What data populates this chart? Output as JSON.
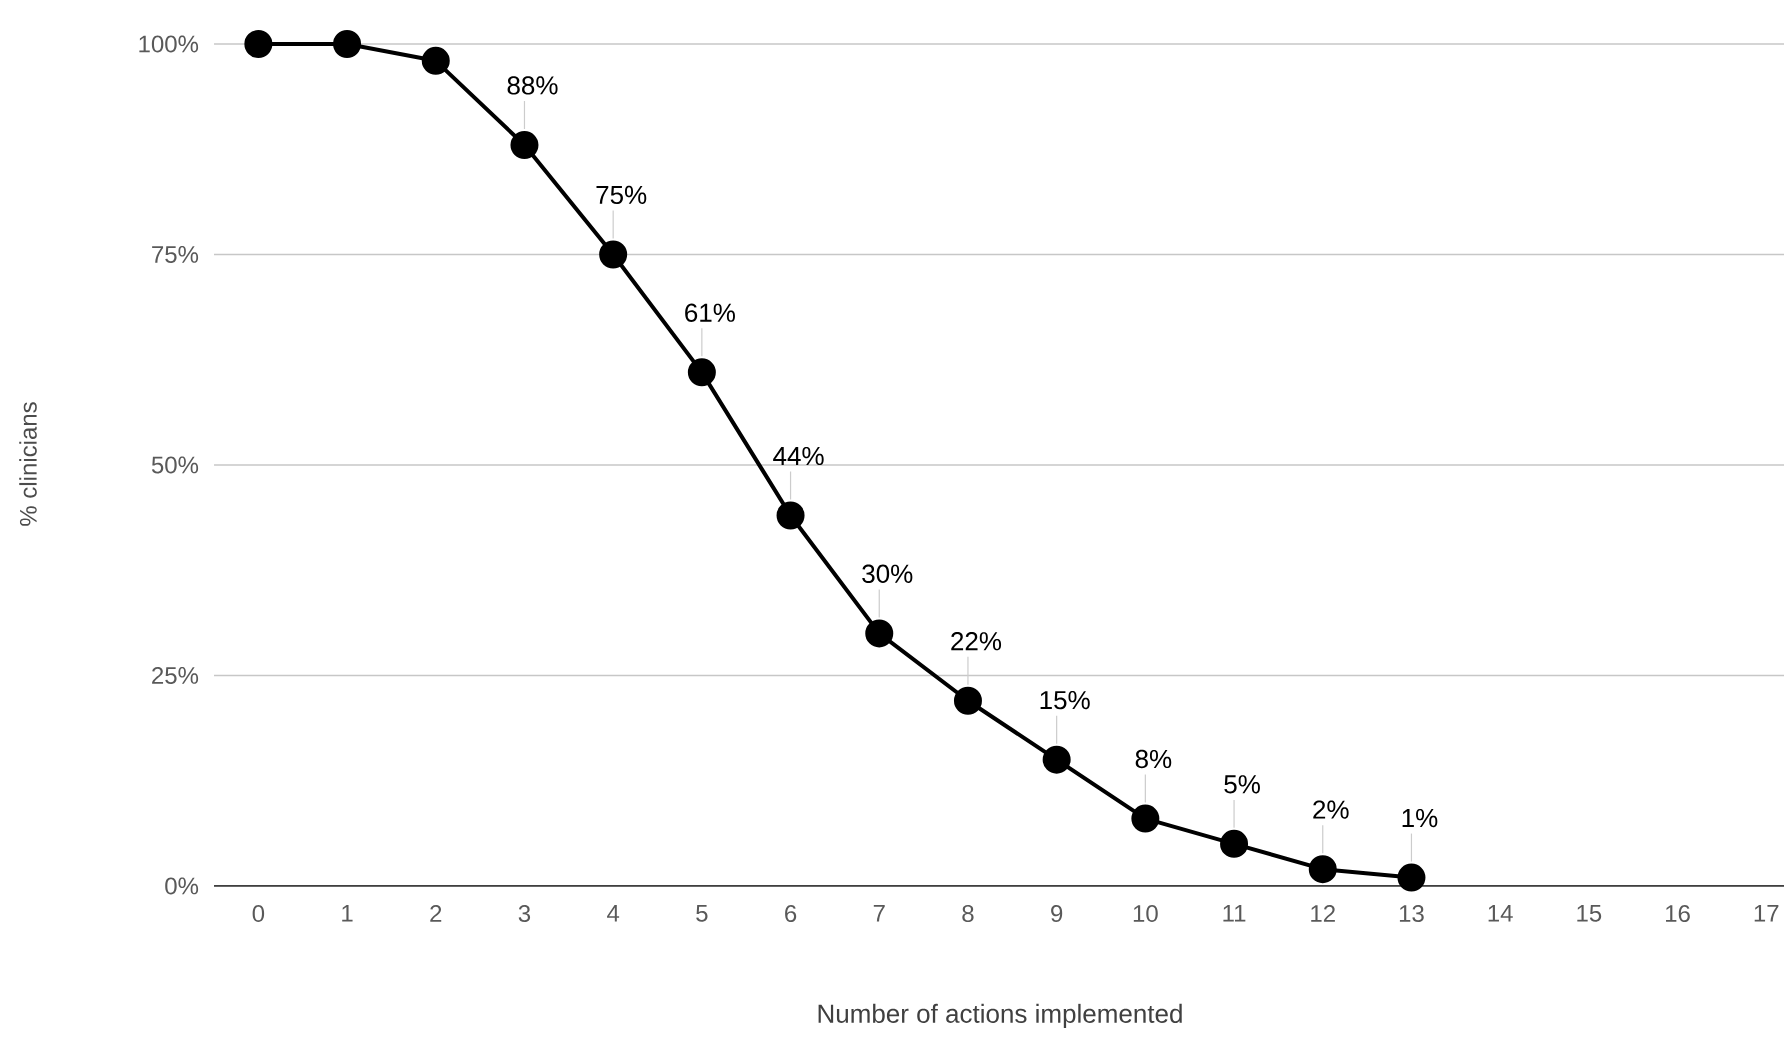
{
  "chart_data": {
    "type": "line",
    "xlabel": "Number of  actions implemented",
    "ylabel": "% clinicians",
    "categories": [
      "0",
      "1",
      "2",
      "3",
      "4",
      "5",
      "6",
      "7",
      "8",
      "9",
      "10",
      "11",
      "12",
      "13",
      "14",
      "15",
      "16",
      "17"
    ],
    "series": [
      {
        "color": "#000000",
        "values": [
          100,
          100,
          98,
          88,
          75,
          61,
          44,
          30,
          22,
          15,
          8,
          5,
          2,
          1,
          null,
          null,
          null,
          null
        ]
      }
    ],
    "value_labels": [
      null,
      null,
      null,
      "88%",
      "75%",
      "61%",
      "44%",
      "30%",
      "22%",
      "15%",
      "8%",
      "5%",
      "2%",
      "1%",
      null,
      null,
      null,
      null
    ],
    "ylim": [
      0,
      100
    ],
    "yticks": [
      {
        "value": 0,
        "label": "0%"
      },
      {
        "value": 25,
        "label": "25%"
      },
      {
        "value": 50,
        "label": "50%"
      },
      {
        "value": 75,
        "label": "75%"
      },
      {
        "value": 100,
        "label": "100%"
      }
    ],
    "grid": "y",
    "marker": "circle",
    "line_style": "solid"
  }
}
